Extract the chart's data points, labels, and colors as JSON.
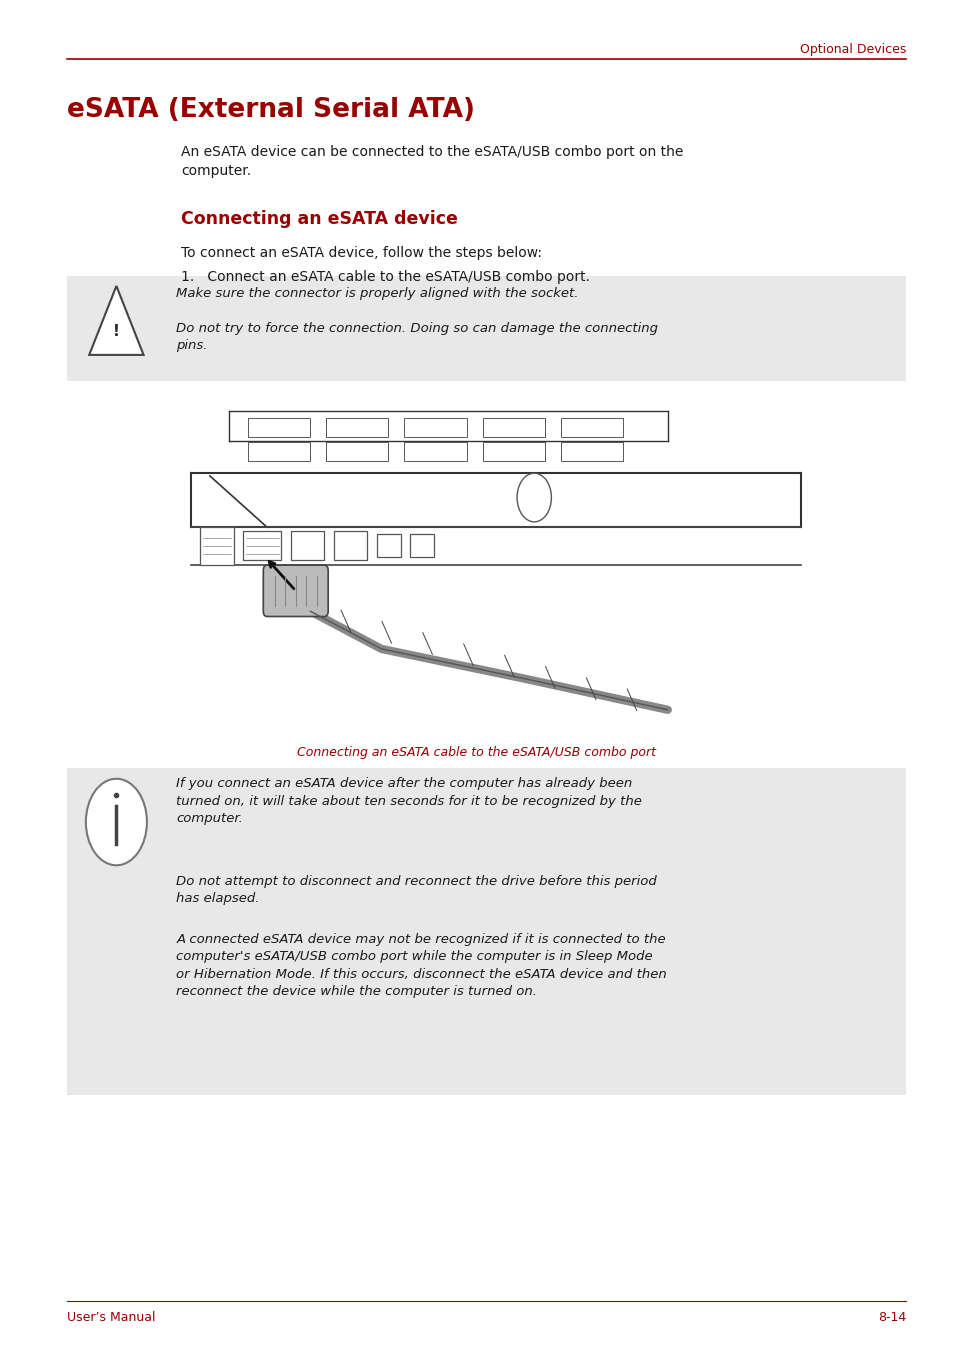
{
  "page_width": 9.54,
  "page_height": 13.52,
  "bg_color": "#ffffff",
  "red_color": "#990000",
  "black_color": "#1a1a1a",
  "gray_bg": "#e8e8e8",
  "header_text": "Optional Devices",
  "main_title": "eSATA (External Serial ATA)",
  "intro_text": "An eSATA device can be connected to the eSATA/USB combo port on the\ncomputer.",
  "section_title": "Connecting an eSATA device",
  "step_intro": "To connect an eSATA device, follow the steps below:",
  "step1": "1.   Connect an eSATA cable to the eSATA/USB combo port.",
  "warning_line1": "Make sure the connector is properly aligned with the socket.",
  "warning_line2": "Do not try to force the connection. Doing so can damage the connecting\npins.",
  "image_caption": "Connecting an eSATA cable to the eSATA/USB combo port",
  "info_text1": "If you connect an eSATA device after the computer has already been\nturned on, it will take about ten seconds for it to be recognized by the\ncomputer.",
  "info_text2": "Do not attempt to disconnect and reconnect the drive before this period\nhas elapsed.",
  "info_text3": "A connected eSATA device may not be recognized if it is connected to the\ncomputer's eSATA/USB combo port while the computer is in Sleep Mode\nor Hibernation Mode. If this occurs, disconnect the eSATA device and then\nreconnect the device while the computer is turned on.",
  "footer_left": "User’s Manual",
  "footer_right": "8-14"
}
